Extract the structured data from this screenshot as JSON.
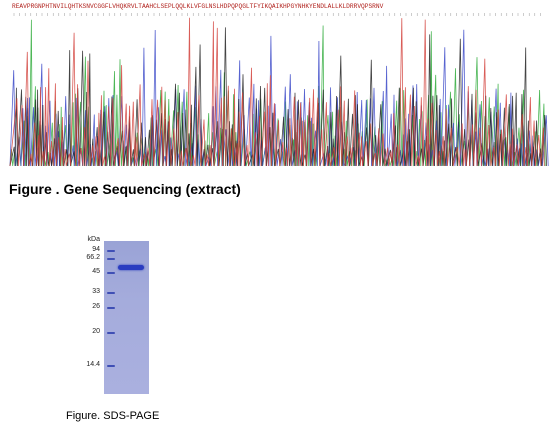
{
  "sequence": {
    "text": "REAVPRGNPHTNVILQHTKSNVCGGFLVHQKRVLTAAHCLSEPLQQLKLVFGLNSLHDPQPQGLTFYIKQAIKHPGYNHKYENDLALLKLDRRVQPSRNV"
  },
  "caption_sequencing": "Figure . Gene Sequencing (extract)",
  "gel": {
    "unit_label": "kDa",
    "markers": [
      {
        "label": "94"
      },
      {
        "label": "66.2"
      },
      {
        "label": "45"
      },
      {
        "label": "33"
      },
      {
        "label": "26"
      },
      {
        "label": "20"
      },
      {
        "label": "14.4"
      }
    ]
  },
  "caption_sds": "Figure. SDS-PAGE",
  "colors": {
    "trace_a": "#2eaa3a",
    "trace_c": "#3a48c8",
    "trace_g": "#222222",
    "trace_t": "#d2403a",
    "gel_bg": "#a5acdc",
    "band": "#2a3cc0"
  }
}
